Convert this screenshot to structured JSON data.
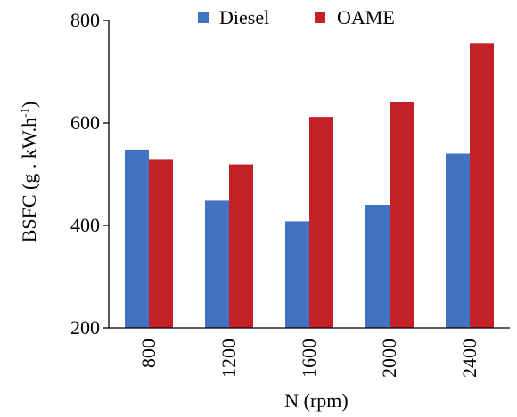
{
  "chart_data": {
    "type": "bar",
    "title": "",
    "xlabel": "N (rpm)",
    "ylabel": "BSFC (g . kW.h",
    "ylabel_superscript": "-1",
    "ylabel_suffix": ")",
    "categories": [
      "800",
      "1200",
      "1600",
      "2000",
      "2400"
    ],
    "series": [
      {
        "name": "Diesel",
        "color": "#4272c0",
        "values": [
          548,
          448,
          408,
          440,
          540
        ]
      },
      {
        "name": "OAME",
        "color": "#c42028",
        "values": [
          528,
          519,
          612,
          640,
          756
        ]
      }
    ],
    "ylim": [
      200,
      800
    ],
    "yticks": [
      "200",
      "400",
      "600",
      "800"
    ],
    "grid": false,
    "legend_position": "top-center"
  }
}
